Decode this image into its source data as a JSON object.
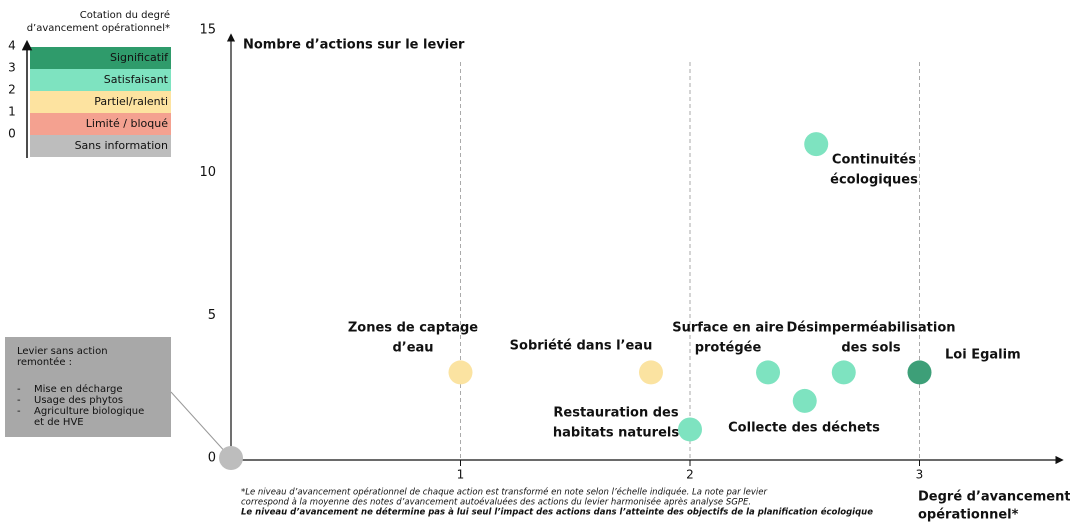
{
  "chart_data": {
    "type": "scatter",
    "y_axis_label": "Nombre d’actions sur le levier",
    "x_axis_label_lines": [
      "Degré d’avancement",
      "opérationnel*"
    ],
    "xlim": [
      0,
      3.6
    ],
    "ylim": [
      0,
      15
    ],
    "xticks": [
      1,
      2,
      3
    ],
    "yticks": [
      0,
      5,
      10,
      15
    ],
    "grid_x": true,
    "points": [
      {
        "x": 0,
        "y": 0,
        "color": "#bdbdbd"
      },
      {
        "label_lines": [
          "Zones de captage",
          "d’eau"
        ],
        "x": 1,
        "y": 3,
        "color": "#fbe3a1",
        "label_color": "#f3cf72"
      },
      {
        "label_lines": [
          "Sobriété dans l’eau"
        ],
        "x": 1.83,
        "y": 3,
        "color": "#fbe3a1",
        "label_color": "#f3cf72"
      },
      {
        "label_lines": [
          "Restauration des",
          "habitats naturels"
        ],
        "x": 2,
        "y": 1,
        "color": "#7ee3c0",
        "label_color": "#62d3ac"
      },
      {
        "label_lines": [
          "Surface en aire",
          "protégée"
        ],
        "x": 2.34,
        "y": 3,
        "color": "#7ee3c0",
        "label_color": "#62d3ac"
      },
      {
        "label_lines": [
          "Collecte des déchets"
        ],
        "x": 2.5,
        "y": 2,
        "color": "#7ee3c0",
        "label_color": "#62d3ac"
      },
      {
        "label_lines": [
          "Continuités",
          "écologiques"
        ],
        "x": 2.55,
        "y": 11,
        "color": "#7ee3c0",
        "label_color": "#62d3ac"
      },
      {
        "label_lines": [
          "Désimperméabilisation",
          "des sols"
        ],
        "x": 2.67,
        "y": 3,
        "color": "#7ee3c0",
        "label_color": "#62d3ac"
      },
      {
        "label_lines": [
          "Loi Egalim"
        ],
        "x": 3,
        "y": 3,
        "color": "#3d9f78",
        "label_color": "#3a9470"
      }
    ],
    "scale_legend": {
      "title_lines": [
        "Cotation du degré",
        "d’avancement opérationnel*"
      ],
      "ticks": [
        4,
        3,
        2,
        1,
        0
      ],
      "bands": [
        {
          "name": "Significatif",
          "color": "#2f9b6b"
        },
        {
          "name": "Satisfaisant",
          "color": "#7ee3c0"
        },
        {
          "name": "Partiel/ralenti",
          "color": "#fde3a0"
        },
        {
          "name": "Limité / bloqué",
          "color": "#f4a190"
        },
        {
          "name": "Sans information",
          "color": "#bdbdbd"
        }
      ]
    },
    "annotation": {
      "title_lines": [
        "Levier sans action",
        "remontée :"
      ],
      "items": [
        [
          "Mise en décharge"
        ],
        [
          "Usage des phytos"
        ],
        [
          "Agriculture biologique",
          "et de HVE"
        ]
      ]
    },
    "footnote": [
      "*Le niveau d’avancement opérationnel de chaque action est transformé en note selon l’échelle indiquée. La note par levier",
      "correspond à la moyenne des notes d’avancement autoévaluées des actions du levier harmonisée après analyse SGPE.",
      "Le niveau d’avancement ne détermine pas à lui seul l’impact des actions dans l’atteinte des objectifs de la planification écologique"
    ]
  }
}
